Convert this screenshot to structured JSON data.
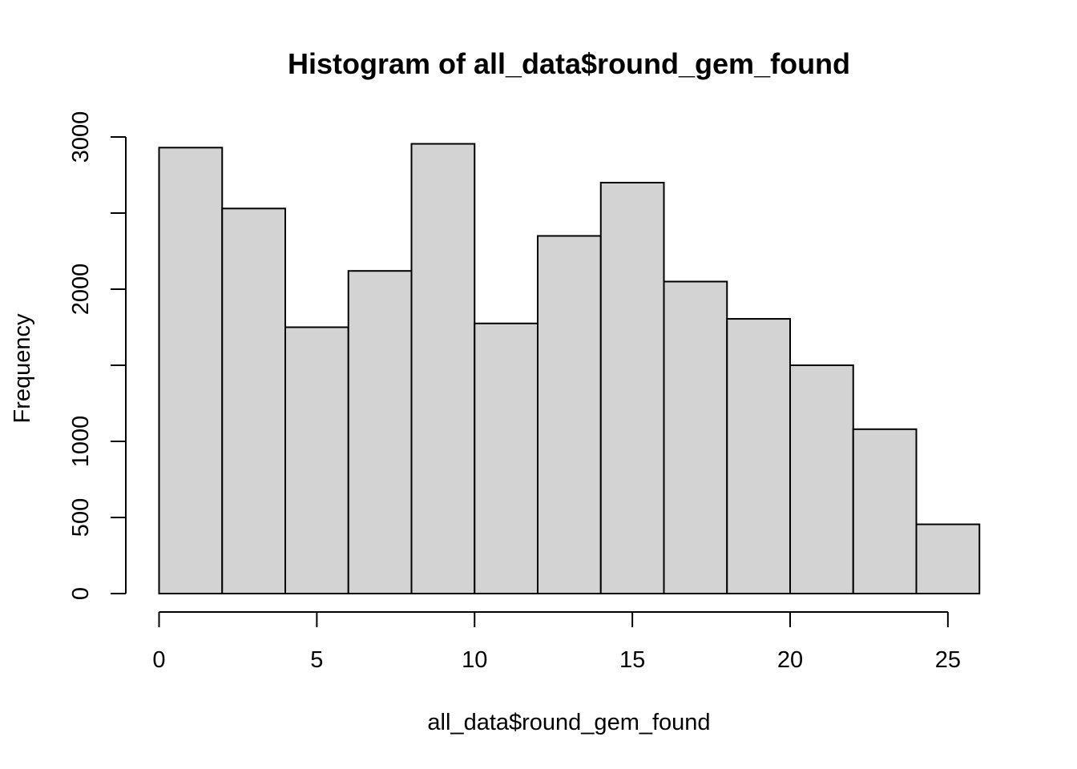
{
  "chart_data": {
    "type": "bar",
    "title": "Histogram of all_data$round_gem_found",
    "xlabel": "all_data$round_gem_found",
    "ylabel": "Frequency",
    "bins": [
      {
        "x0": 0,
        "x1": 2,
        "count": 2930
      },
      {
        "x0": 2,
        "x1": 4,
        "count": 2530
      },
      {
        "x0": 4,
        "x1": 6,
        "count": 1750
      },
      {
        "x0": 6,
        "x1": 8,
        "count": 2120
      },
      {
        "x0": 8,
        "x1": 10,
        "count": 2955
      },
      {
        "x0": 10,
        "x1": 12,
        "count": 1775
      },
      {
        "x0": 12,
        "x1": 14,
        "count": 2350
      },
      {
        "x0": 14,
        "x1": 16,
        "count": 2700
      },
      {
        "x0": 16,
        "x1": 18,
        "count": 2050
      },
      {
        "x0": 18,
        "x1": 20,
        "count": 1805
      },
      {
        "x0": 20,
        "x1": 22,
        "count": 1500
      },
      {
        "x0": 22,
        "x1": 24,
        "count": 1080
      },
      {
        "x0": 24,
        "x1": 26,
        "count": 455
      }
    ],
    "xticks": [
      0,
      5,
      10,
      15,
      20,
      25
    ],
    "xtick_labels": [
      "0",
      "5",
      "10",
      "15",
      "20",
      "25"
    ],
    "yticks": [
      0,
      500,
      1000,
      1500,
      2000,
      2500,
      3000
    ],
    "ytick_labels": [
      "0",
      "500",
      "1000",
      "",
      "2000",
      "",
      "3000"
    ],
    "xlim": [
      0,
      26
    ],
    "ylim": [
      0,
      3000
    ],
    "grid": false,
    "bar_color": "#d3d3d3",
    "edge_color": "#000000"
  }
}
